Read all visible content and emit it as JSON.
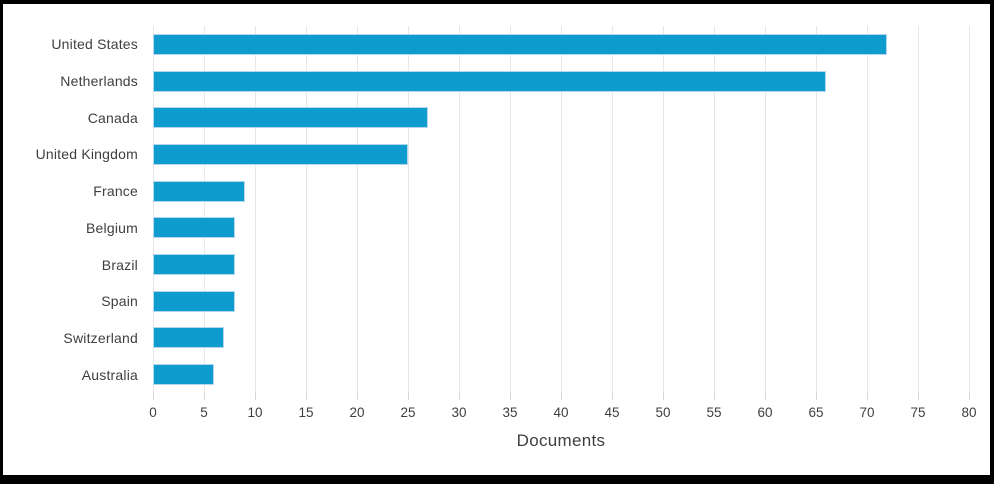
{
  "chart_data": {
    "type": "bar",
    "orientation": "horizontal",
    "title": "",
    "xlabel": "Documents",
    "ylabel": "",
    "categories": [
      "United States",
      "Netherlands",
      "Canada",
      "United Kingdom",
      "France",
      "Belgium",
      "Brazil",
      "Spain",
      "Switzerland",
      "Australia"
    ],
    "values": [
      72,
      66,
      27,
      25,
      9,
      8,
      8,
      8,
      7,
      6
    ],
    "xlim": [
      0,
      80
    ],
    "xticks": [
      0,
      5,
      10,
      15,
      20,
      25,
      30,
      35,
      40,
      45,
      50,
      55,
      60,
      65,
      70,
      75,
      80
    ],
    "grid": true,
    "legend": false,
    "colors": {
      "bar_fill": "#0E9BCD",
      "bar_border": "#B3D7EC",
      "gridline": "#E7E7E7",
      "tick": "#D6D6D6",
      "text": "#3F3F3F",
      "frame_border": "#000000"
    }
  }
}
